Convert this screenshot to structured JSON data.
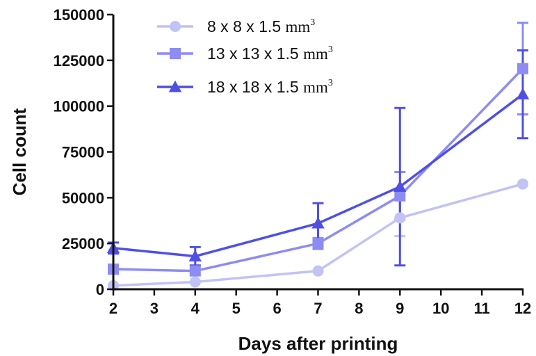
{
  "chart_data": {
    "type": "line",
    "title": "",
    "xlabel": "Days after printing",
    "ylabel": "Cell count",
    "xlim": [
      2,
      12
    ],
    "ylim": [
      0,
      150000
    ],
    "x_ticks": [
      "2",
      "3",
      "4",
      "5",
      "6",
      "7",
      "8",
      "9",
      "10",
      "11",
      "12"
    ],
    "y_ticks": [
      "0",
      "25000",
      "50000",
      "75000",
      "100000",
      "125000",
      "150000"
    ],
    "grid": false,
    "legend_position": "top-center",
    "x": [
      2,
      4,
      7,
      9,
      12
    ],
    "series": [
      {
        "name": "8 x 8 x 1.5 mm³",
        "label_text": "8 x 8 x 1.5 ",
        "unit": "mm",
        "sup": "3",
        "marker": "circle",
        "color": "#c2c2f4",
        "values": [
          2000,
          4000,
          10000,
          39000,
          57500
        ],
        "errors": [
          0,
          0,
          0,
          10000,
          0
        ]
      },
      {
        "name": "13 x 13 x 1.5 mm³",
        "label_text": "13 x 13 x 1.5 ",
        "unit": "mm",
        "sup": "3",
        "marker": "square",
        "color": "#8c8cf2",
        "values": [
          11000,
          10000,
          25000,
          51000,
          120500
        ],
        "errors": [
          0,
          0,
          3000,
          13000,
          25000
        ]
      },
      {
        "name": "18 x 18 x 1.5 mm³",
        "label_text": "18 x 18 x 1.5 ",
        "unit": "mm",
        "sup": "3",
        "marker": "triangle",
        "color": "#4f4fe6",
        "values": [
          22500,
          18000,
          36000,
          56000,
          106500
        ],
        "errors": [
          3000,
          5000,
          11000,
          43000,
          24000
        ]
      }
    ]
  }
}
